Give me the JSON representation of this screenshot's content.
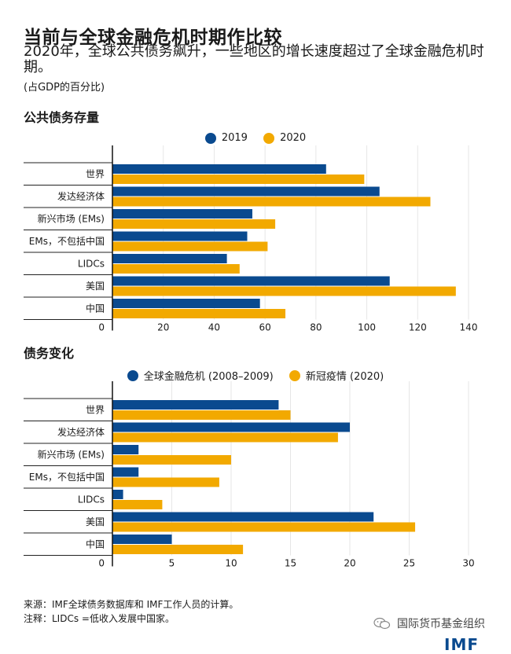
{
  "header": {
    "title": "当前与全球金融危机时期作比较",
    "subtitle": "2020年，全球公共债务飙升，一些地区的增长速度超过了全球金融危机时期。",
    "unit": "(占GDP的百分比)"
  },
  "colors": {
    "blue": "#0a4a8f",
    "gold": "#f2a900",
    "grid": "#e6e6e6",
    "axis": "#111111"
  },
  "chart_data": [
    {
      "type": "bar",
      "orientation": "horizontal",
      "title": "公共债务存量",
      "categories": [
        "世界",
        "发达经济体",
        "新兴市场 (EMs)",
        "EMs，不包括中国",
        "LIDCs",
        "美国",
        "中国"
      ],
      "series": [
        {
          "name": "2019",
          "color": "#0a4a8f",
          "values": [
            84,
            105,
            55,
            53,
            45,
            109,
            58
          ]
        },
        {
          "name": "2020",
          "color": "#f2a900",
          "values": [
            99,
            125,
            64,
            61,
            50,
            135,
            68
          ]
        }
      ],
      "xlim": [
        0,
        140
      ],
      "xticks": [
        0,
        20,
        40,
        60,
        80,
        100,
        120,
        140
      ],
      "grid": true,
      "legend": "top-center"
    },
    {
      "type": "bar",
      "orientation": "horizontal",
      "title": "债务变化",
      "categories": [
        "世界",
        "发达经济体",
        "新兴市场 (EMs)",
        "EMs，不包括中国",
        "LIDCs",
        "美国",
        "中国"
      ],
      "series": [
        {
          "name": "全球金融危机 (2008–2009)",
          "color": "#0a4a8f",
          "values": [
            14,
            20,
            2.2,
            2.2,
            0.9,
            22,
            5
          ]
        },
        {
          "name": "新冠疫情 (2020)",
          "color": "#f2a900",
          "values": [
            15,
            19,
            10,
            9,
            4.2,
            25.5,
            11
          ]
        }
      ],
      "xlim": [
        0,
        30
      ],
      "xticks": [
        0,
        5,
        10,
        15,
        20,
        25,
        30
      ],
      "grid": true,
      "legend": "top-center"
    }
  ],
  "footer": {
    "source": "来源：IMF全球债务数据库和 IMF工作人员的计算。",
    "note": "注释：LIDCs =低收入发展中国家。"
  },
  "brand": {
    "wechat_name": "国际货币基金组织",
    "logo_text": "IMF",
    "icon": "wechat-icon"
  }
}
